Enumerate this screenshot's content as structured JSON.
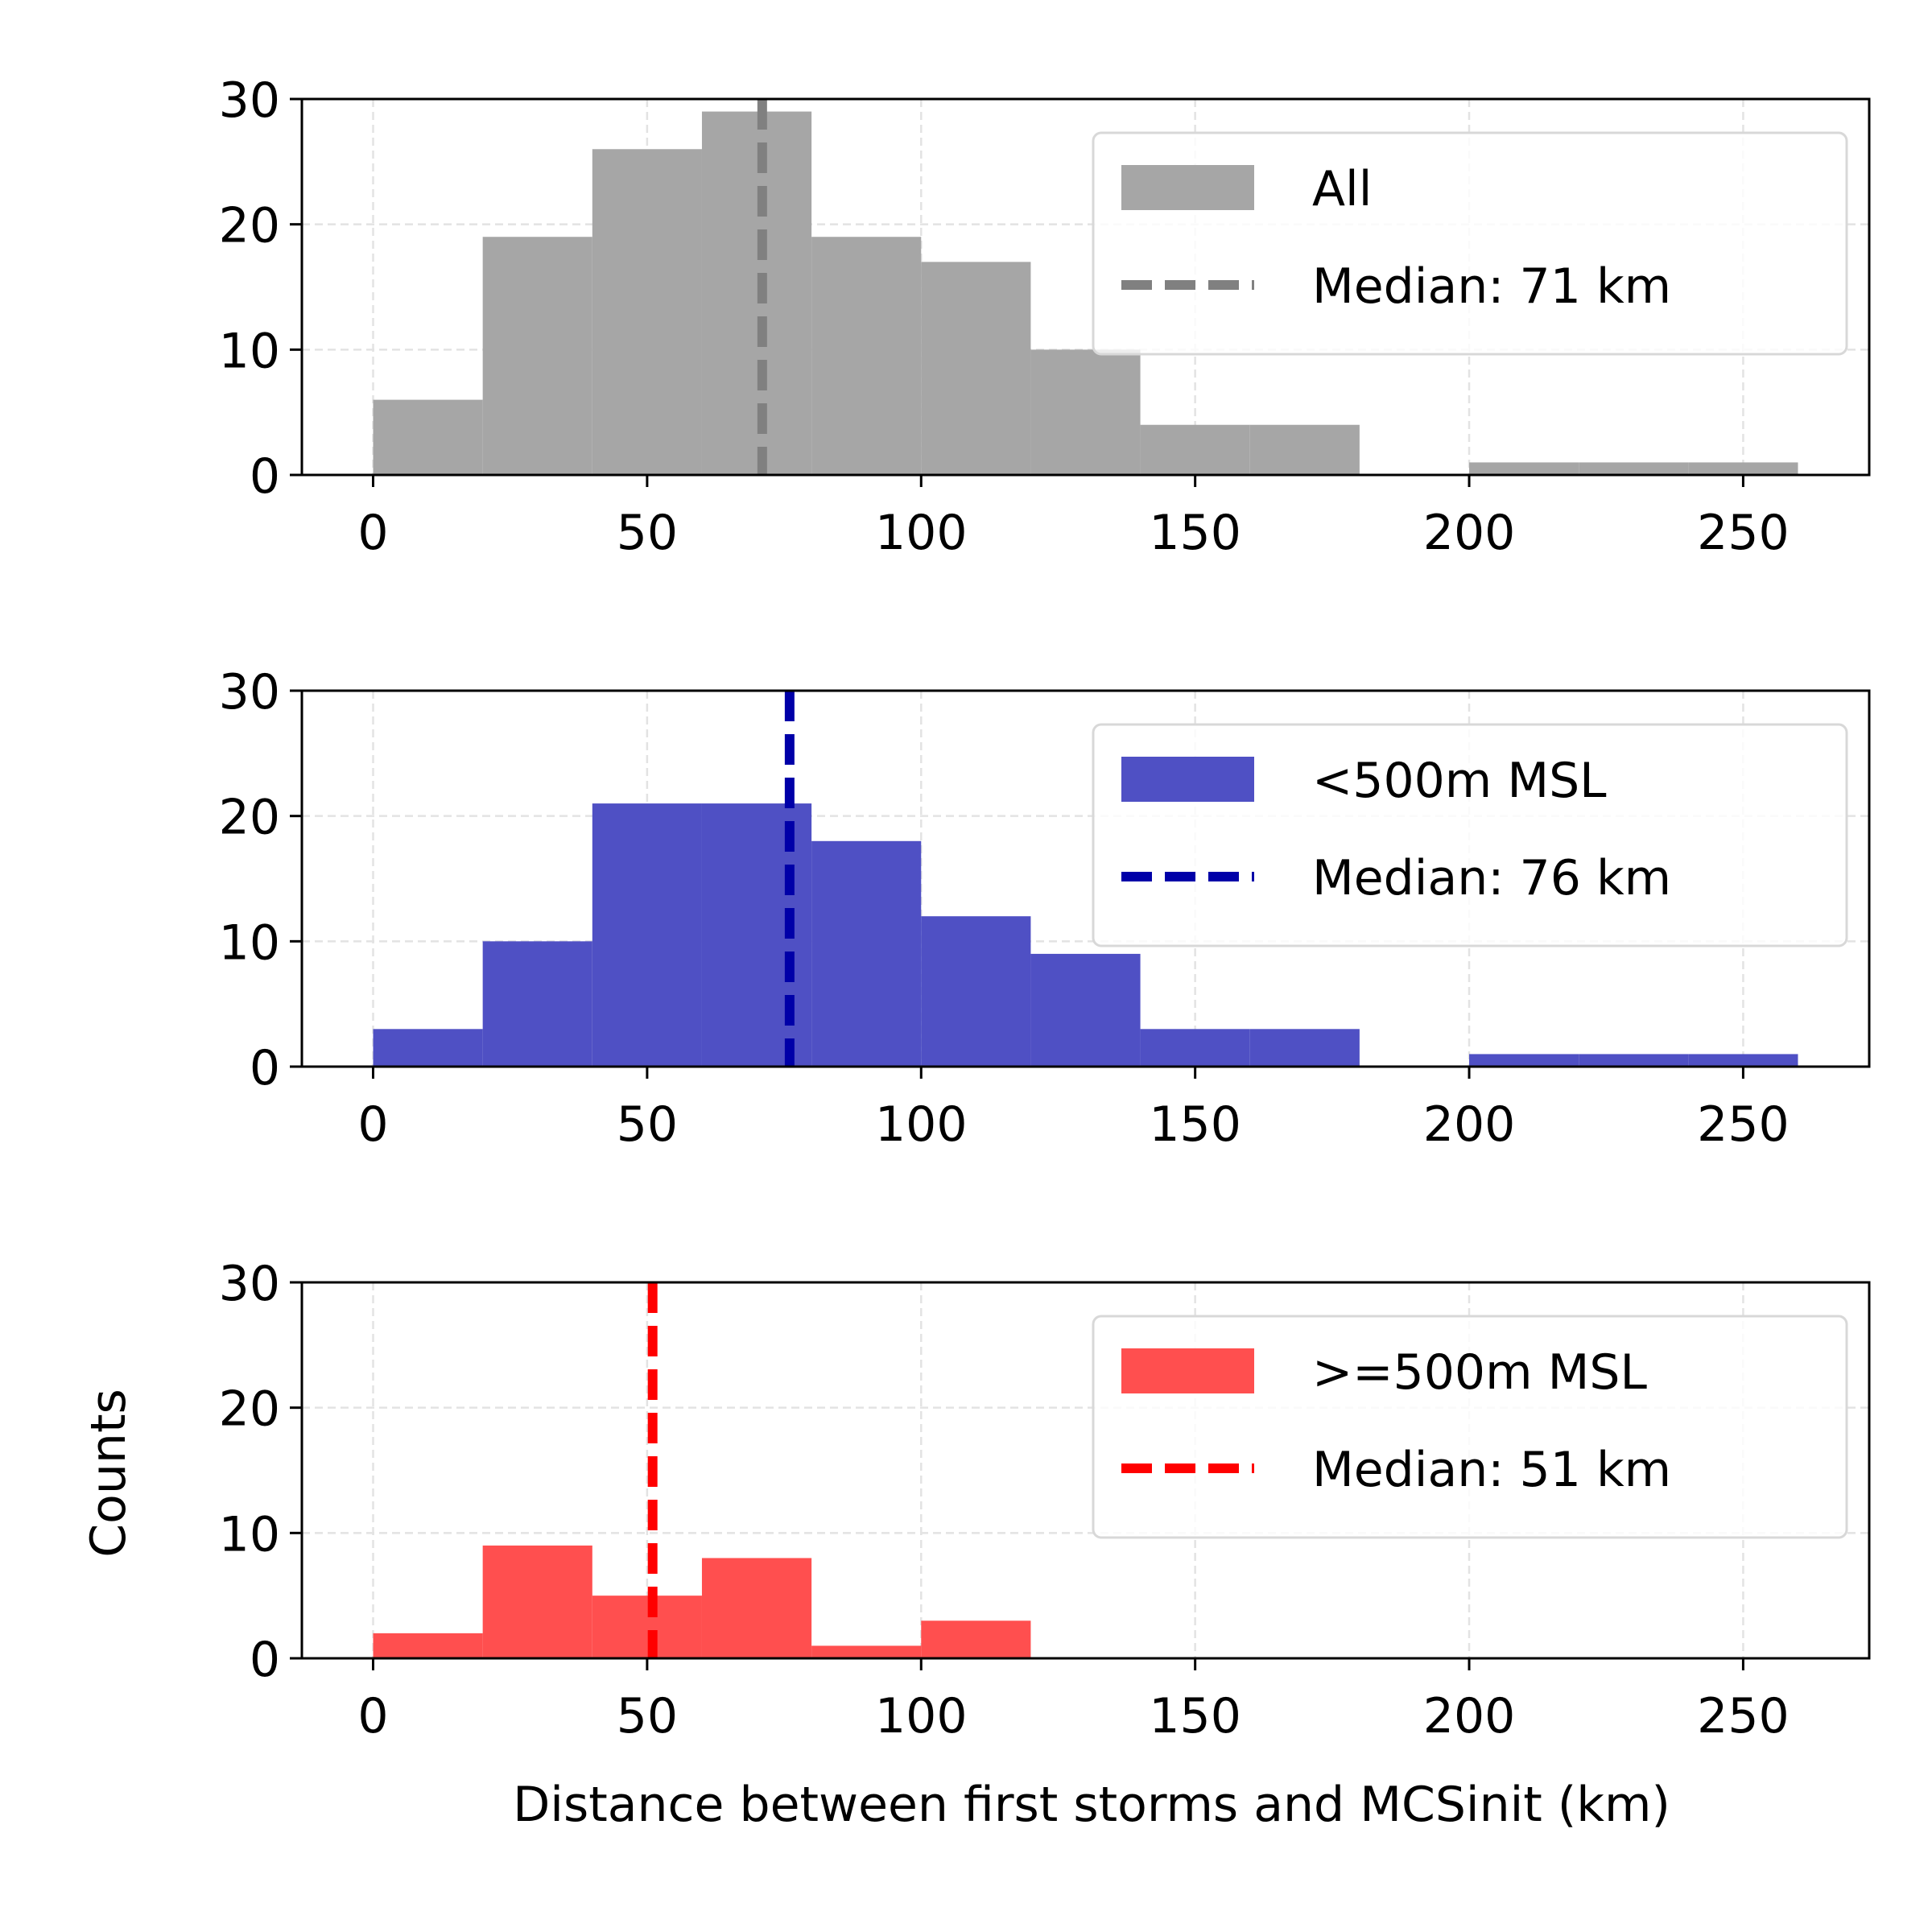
{
  "figure": {
    "xlabel": "Distance between first storms and MCSinit (km)",
    "ylabel": "Counts"
  },
  "chart_data": [
    {
      "type": "bar",
      "bin_edges": [
        0,
        20,
        40,
        60,
        80,
        100,
        120,
        140,
        160,
        180,
        200,
        220,
        240,
        260
      ],
      "counts": [
        6,
        19,
        26,
        29,
        19,
        17,
        10,
        4,
        4,
        0,
        1,
        1,
        1
      ],
      "series_name": "All",
      "median": 71,
      "median_label": "Median: 71 km",
      "bar_color": "#a6a6a6",
      "median_color": "#808080",
      "xlim": [
        -13,
        273
      ],
      "ylim": [
        0,
        30
      ],
      "xticks": [
        0,
        50,
        100,
        150,
        200,
        250
      ],
      "yticks": [
        0,
        10,
        20,
        30
      ],
      "grid": true,
      "legend_position": "top-right"
    },
    {
      "type": "bar",
      "bin_edges": [
        0,
        20,
        40,
        60,
        80,
        100,
        120,
        140,
        160,
        180,
        200,
        220,
        240,
        260
      ],
      "counts": [
        3,
        10,
        21,
        21,
        18,
        12,
        9,
        3,
        3,
        0,
        1,
        1,
        1
      ],
      "series_name": "<500m MSL",
      "median": 76,
      "median_label": "Median: 76 km",
      "bar_color": "#4f50c4",
      "median_color": "#0000a8",
      "xlim": [
        -13,
        273
      ],
      "ylim": [
        0,
        30
      ],
      "xticks": [
        0,
        50,
        100,
        150,
        200,
        250
      ],
      "yticks": [
        0,
        10,
        20,
        30
      ],
      "grid": true,
      "legend_position": "top-right"
    },
    {
      "type": "bar",
      "bin_edges": [
        0,
        20,
        40,
        60,
        80,
        100,
        120
      ],
      "counts": [
        2,
        9,
        5,
        8,
        1,
        3
      ],
      "series_name": ">=500m MSL",
      "median": 51,
      "median_label": "Median: 51 km",
      "bar_color": "#ff4f4f",
      "median_color": "#ff0000",
      "xlim": [
        -13,
        273
      ],
      "ylim": [
        0,
        30
      ],
      "xticks": [
        0,
        50,
        100,
        150,
        200,
        250
      ],
      "yticks": [
        0,
        10,
        20,
        30
      ],
      "grid": true,
      "legend_position": "top-right"
    }
  ]
}
